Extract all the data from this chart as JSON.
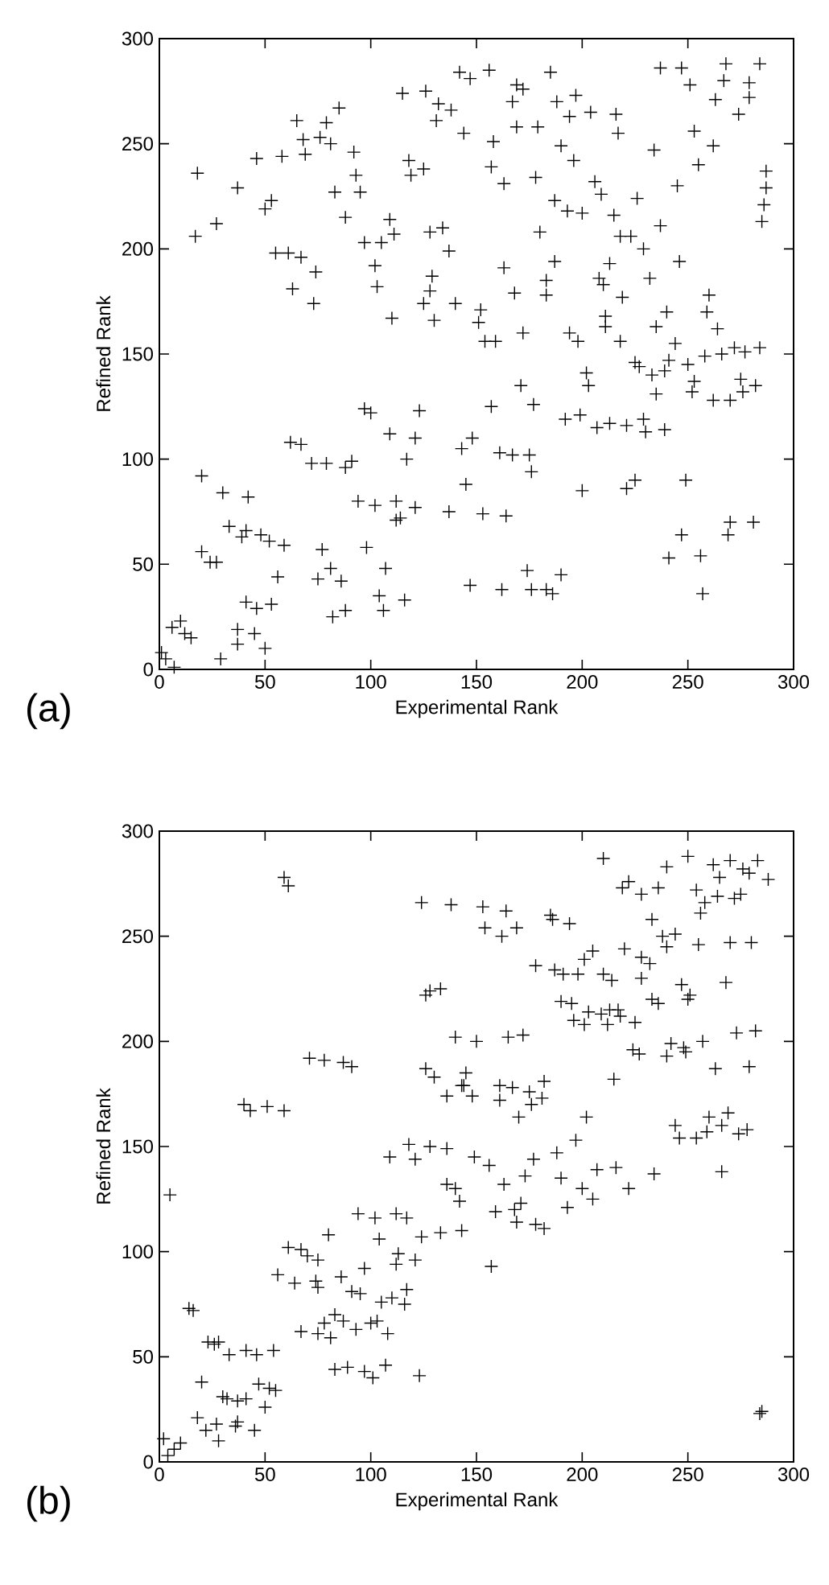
{
  "chart_data": [
    {
      "type": "scatter",
      "xlabel": "Experimental Rank",
      "ylabel": "Refined Rank",
      "annotations": [
        "(a)"
      ],
      "marker": "cross",
      "color": "#000000",
      "xlim": [
        0,
        300
      ],
      "ylim": [
        0,
        300
      ],
      "xticks": [
        0,
        50,
        100,
        150,
        200,
        250,
        300
      ],
      "yticks": [
        0,
        50,
        100,
        150,
        200,
        250,
        300
      ],
      "x": [
        142,
        115,
        126,
        132,
        138,
        131,
        144,
        85,
        79,
        65,
        68,
        76,
        81,
        69,
        46,
        58,
        92,
        18,
        37,
        50,
        53,
        83,
        93,
        95,
        118,
        119,
        125,
        88,
        27,
        17,
        109,
        111,
        105,
        97,
        128,
        134,
        137,
        55,
        61,
        67,
        74,
        63,
        73,
        102,
        103,
        110,
        129,
        128,
        125,
        130,
        140,
        97,
        100,
        123,
        109,
        121,
        117,
        62,
        67,
        72,
        79,
        88,
        91,
        20,
        30,
        42,
        94,
        102,
        112,
        114,
        121,
        112,
        137,
        33,
        41,
        39,
        48,
        52,
        59,
        20,
        24,
        27,
        56,
        77,
        81,
        75,
        86,
        98,
        107,
        41,
        46,
        53,
        82,
        88,
        104,
        106,
        116,
        6,
        10,
        15,
        12,
        37,
        45,
        37,
        50,
        29,
        1,
        3,
        7,
        147,
        156,
        169,
        172,
        167,
        185,
        188,
        197,
        194,
        204,
        216,
        217,
        158,
        169,
        179,
        190,
        196,
        157,
        163,
        178,
        187,
        193,
        200,
        215,
        206,
        209,
        226,
        234,
        237,
        245,
        237,
        247,
        251,
        268,
        284,
        267,
        263,
        279,
        279,
        274,
        253,
        262,
        255,
        287,
        287,
        286,
        285,
        180,
        187,
        163,
        183,
        168,
        183,
        218,
        223,
        229,
        213,
        208,
        210,
        232,
        246,
        152,
        151,
        154,
        159,
        172,
        194,
        198,
        211,
        211,
        219,
        218,
        240,
        235,
        244,
        260,
        259,
        264,
        225,
        227,
        233,
        239,
        241,
        250,
        258,
        266,
        272,
        277,
        284,
        202,
        203,
        235,
        253,
        252,
        262,
        270,
        276,
        282,
        275,
        171,
        157,
        177,
        192,
        199,
        207,
        213,
        221,
        229,
        230,
        239,
        148,
        143,
        161,
        167,
        175,
        176,
        145,
        200,
        221,
        225,
        249,
        153,
        164,
        270,
        269,
        281,
        247,
        241,
        256,
        257,
        147,
        162,
        174,
        176,
        183,
        186,
        190
      ],
      "values": [
        284,
        274,
        275,
        269,
        266,
        261,
        255,
        267,
        260,
        261,
        252,
        253,
        250,
        245,
        243,
        244,
        246,
        236,
        229,
        219,
        223,
        227,
        235,
        227,
        242,
        235,
        238,
        215,
        212,
        206,
        214,
        207,
        203,
        203,
        208,
        210,
        199,
        198,
        198,
        196,
        189,
        181,
        174,
        192,
        182,
        167,
        187,
        180,
        174,
        166,
        174,
        124,
        122,
        123,
        112,
        110,
        100,
        108,
        107,
        98,
        98,
        96,
        99,
        92,
        84,
        82,
        80,
        78,
        80,
        72,
        77,
        71,
        75,
        68,
        66,
        63,
        64,
        61,
        59,
        56,
        51,
        51,
        44,
        57,
        48,
        43,
        42,
        58,
        48,
        32,
        29,
        31,
        25,
        28,
        35,
        28,
        33,
        20,
        23,
        15,
        17,
        19,
        17,
        12,
        10,
        5,
        8,
        5,
        1,
        281,
        285,
        278,
        276,
        270,
        284,
        270,
        273,
        263,
        265,
        264,
        255,
        251,
        258,
        258,
        249,
        242,
        239,
        231,
        234,
        223,
        218,
        217,
        216,
        232,
        226,
        224,
        247,
        211,
        230,
        286,
        286,
        278,
        288,
        288,
        280,
        271,
        279,
        272,
        264,
        256,
        249,
        240,
        237,
        229,
        221,
        213,
        208,
        194,
        191,
        185,
        179,
        178,
        206,
        206,
        200,
        193,
        186,
        183,
        186,
        194,
        171,
        165,
        156,
        156,
        160,
        160,
        156,
        168,
        163,
        177,
        156,
        170,
        163,
        155,
        178,
        170,
        162,
        146,
        144,
        140,
        142,
        147,
        145,
        149,
        150,
        153,
        151,
        153,
        141,
        135,
        131,
        137,
        132,
        128,
        128,
        132,
        135,
        138,
        135,
        125,
        126,
        119,
        121,
        115,
        117,
        116,
        119,
        113,
        114,
        110,
        105,
        103,
        102,
        102,
        94,
        88,
        85,
        86,
        90,
        90,
        74,
        73,
        70,
        64,
        70,
        64,
        53,
        54,
        36,
        40,
        38,
        47,
        38,
        38,
        36,
        45
      ]
    },
    {
      "type": "scatter",
      "xlabel": "Experimental Rank",
      "ylabel": "Refined Rank",
      "annotations": [
        "(b)"
      ],
      "marker": "cross",
      "color": "#000000",
      "xlim": [
        0,
        300
      ],
      "ylim": [
        0,
        300
      ],
      "xticks": [
        0,
        50,
        100,
        150,
        200,
        250,
        300
      ],
      "yticks": [
        0,
        50,
        100,
        150,
        200,
        250,
        300
      ],
      "x": [
        59,
        61,
        124,
        138,
        126,
        128,
        133,
        140,
        71,
        78,
        87,
        91,
        126,
        130,
        136,
        144,
        40,
        43,
        51,
        59,
        118,
        128,
        136,
        109,
        121,
        5,
        136,
        140,
        142,
        94,
        102,
        112,
        117,
        104,
        124,
        133,
        143,
        80,
        61,
        67,
        70,
        75,
        97,
        112,
        121,
        113,
        56,
        64,
        74,
        75,
        86,
        91,
        95,
        105,
        110,
        116,
        117,
        83,
        87,
        67,
        75,
        81,
        78,
        93,
        100,
        103,
        108,
        14,
        16,
        23,
        26,
        28,
        33,
        41,
        46,
        54,
        83,
        89,
        97,
        101,
        107,
        123,
        20,
        30,
        32,
        37,
        41,
        47,
        52,
        55,
        50,
        18,
        27,
        22,
        37,
        45,
        28,
        36,
        2,
        10,
        4,
        7,
        210,
        240,
        250,
        262,
        270,
        276,
        279,
        283,
        288,
        265,
        219,
        222,
        228,
        236,
        254,
        258,
        264,
        272,
        275,
        256,
        233,
        238,
        244,
        240,
        255,
        270,
        280,
        153,
        164,
        154,
        162,
        169,
        185,
        186,
        194,
        178,
        187,
        191,
        198,
        210,
        214,
        201,
        205,
        220,
        228,
        232,
        228,
        247,
        251,
        250,
        268,
        233,
        236,
        190,
        195,
        196,
        201,
        203,
        209,
        213,
        217,
        218,
        212,
        225,
        224,
        227,
        240,
        242,
        248,
        249,
        257,
        263,
        273,
        282,
        279,
        215,
        150,
        165,
        172,
        145,
        143,
        148,
        161,
        161,
        167,
        175,
        176,
        181,
        182,
        170,
        202,
        197,
        188,
        177,
        173,
        163,
        156,
        149,
        207,
        216,
        234,
        222,
        205,
        200,
        193,
        190,
        171,
        168,
        169,
        159,
        178,
        182,
        157,
        244,
        246,
        254,
        259,
        260,
        269,
        266,
        274,
        278,
        266,
        284,
        285
      ],
      "values": [
        278,
        274,
        266,
        265,
        222,
        224,
        225,
        202,
        192,
        191,
        190,
        188,
        187,
        183,
        174,
        179,
        170,
        167,
        169,
        167,
        151,
        150,
        149,
        145,
        144,
        127,
        132,
        130,
        124,
        118,
        116,
        118,
        116,
        106,
        107,
        109,
        110,
        108,
        102,
        101,
        98,
        96,
        92,
        94,
        96,
        99,
        89,
        85,
        86,
        83,
        88,
        81,
        80,
        76,
        78,
        75,
        82,
        70,
        67,
        62,
        61,
        59,
        66,
        63,
        66,
        67,
        61,
        73,
        72,
        57,
        56,
        57,
        51,
        53,
        51,
        53,
        44,
        45,
        43,
        40,
        46,
        41,
        38,
        31,
        30,
        29,
        30,
        37,
        35,
        34,
        26,
        21,
        18,
        15,
        19,
        15,
        10,
        17,
        11,
        9,
        3,
        6,
        287,
        283,
        288,
        284,
        286,
        282,
        280,
        286,
        277,
        278,
        273,
        276,
        270,
        273,
        272,
        266,
        269,
        268,
        270,
        261,
        258,
        250,
        251,
        245,
        246,
        247,
        247,
        264,
        262,
        254,
        250,
        254,
        260,
        258,
        256,
        236,
        234,
        232,
        232,
        232,
        229,
        239,
        243,
        244,
        240,
        237,
        230,
        227,
        222,
        220,
        228,
        220,
        218,
        219,
        218,
        210,
        208,
        214,
        213,
        215,
        215,
        212,
        208,
        209,
        196,
        194,
        193,
        199,
        197,
        195,
        200,
        187,
        204,
        205,
        188,
        182,
        200,
        202,
        203,
        185,
        179,
        174,
        179,
        172,
        178,
        176,
        170,
        173,
        181,
        164,
        164,
        153,
        147,
        144,
        136,
        132,
        141,
        145,
        139,
        140,
        137,
        130,
        125,
        130,
        121,
        135,
        123,
        120,
        114,
        119,
        113,
        111,
        93,
        160,
        154,
        154,
        157,
        164,
        166,
        160,
        156,
        158,
        138,
        23,
        24
      ]
    }
  ]
}
